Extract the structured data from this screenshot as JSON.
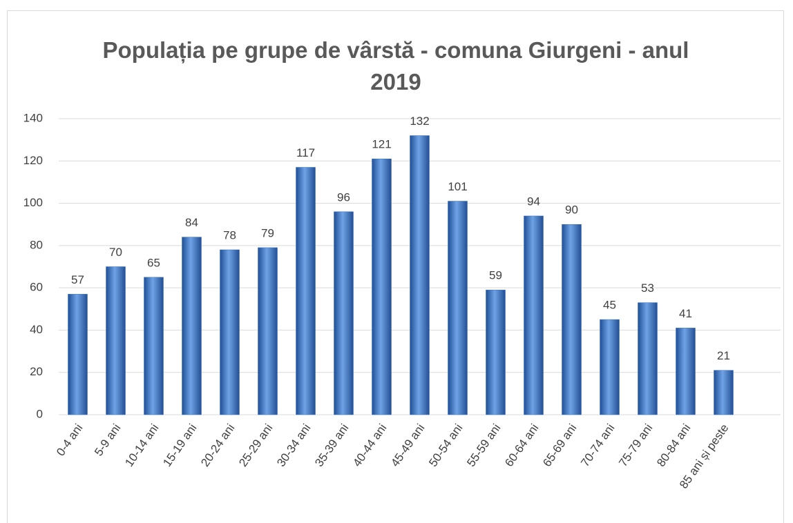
{
  "chart_data": {
    "type": "bar",
    "title": "Populația pe grupe de vârstă - comuna Giurgeni - anul 2019",
    "categories": [
      "0-4 ani",
      "5-9 ani",
      "10-14 ani",
      "15-19 ani",
      "20-24 ani",
      "25-29 ani",
      "30-34 ani",
      "35-39 ani",
      "40-44 ani",
      "45-49 ani",
      "50-54 ani",
      "55-59 ani",
      "60-64 ani",
      "65-69 ani",
      "70-74 ani",
      "75-79 ani",
      "80-84 ani",
      "85 ani și peste"
    ],
    "values": [
      57,
      70,
      65,
      84,
      78,
      79,
      117,
      96,
      121,
      132,
      101,
      59,
      94,
      90,
      45,
      53,
      41,
      21
    ],
    "color": "#3a6fc4",
    "ylim": [
      0,
      140
    ],
    "yticks": [
      0,
      20,
      40,
      60,
      80,
      100,
      120,
      140
    ],
    "grid": true
  }
}
